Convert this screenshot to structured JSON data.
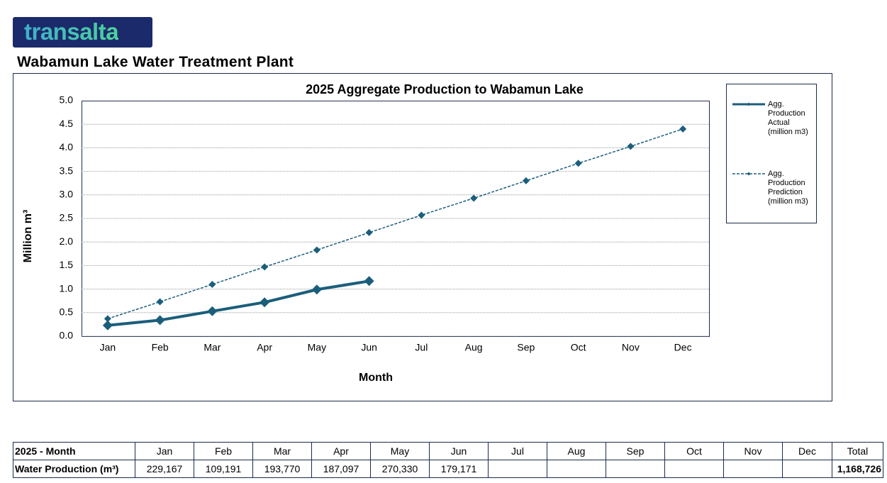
{
  "logo": "transalta",
  "page_title": "Wabamun Lake Water Treatment Plant",
  "chart_data": {
    "type": "line",
    "title": "2025 Aggregate Production to Wabamun Lake",
    "x_label": "Month",
    "y_label": "Million m³",
    "categories": [
      "Jan",
      "Feb",
      "Mar",
      "Apr",
      "May",
      "Jun",
      "Jul",
      "Aug",
      "Sep",
      "Oct",
      "Nov",
      "Dec"
    ],
    "series": [
      {
        "name": "Agg. Production Actual (million m3)",
        "color": "#1b5e7b",
        "style": "solid",
        "values": [
          0.23,
          0.34,
          0.53,
          0.72,
          0.99,
          1.17,
          null,
          null,
          null,
          null,
          null,
          null
        ]
      },
      {
        "name": "Agg. Production Prediction (million m3)",
        "color": "#1b5e7b",
        "style": "dashed",
        "values": [
          0.37,
          0.73,
          1.1,
          1.47,
          1.83,
          2.2,
          2.57,
          2.93,
          3.3,
          3.67,
          4.03,
          4.4
        ]
      }
    ],
    "ylim": [
      0,
      5
    ],
    "yticks": [
      {
        "value": 0,
        "label": "0.0"
      },
      {
        "value": 0.5,
        "label": "0.5"
      },
      {
        "value": 1,
        "label": "1.0"
      },
      {
        "value": 1.5,
        "label": "1.5"
      },
      {
        "value": 2,
        "label": "2.0"
      },
      {
        "value": 2.5,
        "label": "2.5"
      },
      {
        "value": 3,
        "label": "3.0"
      },
      {
        "value": 3.5,
        "label": "3.5"
      },
      {
        "value": 4,
        "label": "4.0"
      },
      {
        "value": 4.5,
        "label": "4.5"
      },
      {
        "value": 5,
        "label": "5.0"
      }
    ],
    "grid": true,
    "legend": "right"
  },
  "table": {
    "header": [
      "2025 - Month",
      "Jan",
      "Feb",
      "Mar",
      "Apr",
      "May",
      "Jun",
      "Jul",
      "Aug",
      "Sep",
      "Oct",
      "Nov",
      "Dec",
      "Total"
    ],
    "rows": [
      [
        "Water Production (m³)",
        "229,167",
        "109,191",
        "193,770",
        "187,097",
        "270,330",
        "179,171",
        null,
        null,
        null,
        null,
        null,
        null,
        "1,168,726"
      ]
    ]
  }
}
